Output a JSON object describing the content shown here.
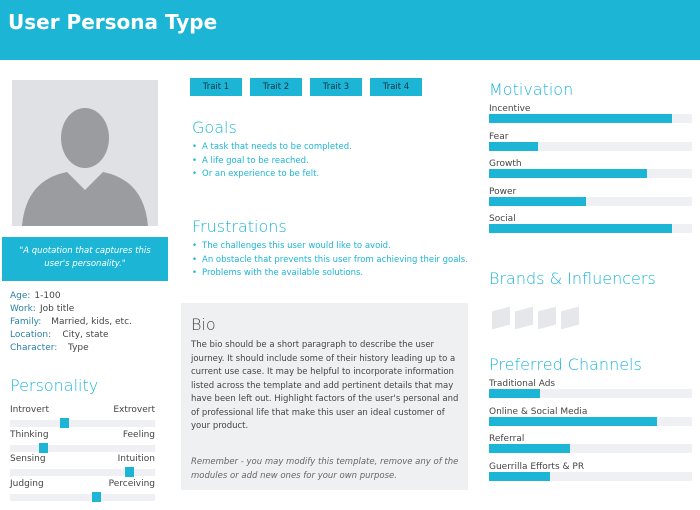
{
  "header": {
    "title": "User Persona Type"
  },
  "profile": {
    "quote": "\"A quotation that captures this user's personality.\"",
    "details": [
      {
        "label": "Age:",
        "value": "1-100"
      },
      {
        "label": "Work:",
        "value": "Job title"
      },
      {
        "label": "Family:",
        "value": "Married, kids, etc."
      },
      {
        "label": "Location:",
        "value": "City, state"
      },
      {
        "label": "Character:",
        "value": "Type"
      }
    ]
  },
  "personality": {
    "title": "Personality",
    "scales": [
      {
        "left": "Introvert",
        "right": "Extrovert",
        "value": 37
      },
      {
        "left": "Thinking",
        "right": "Feeling",
        "value": 23
      },
      {
        "left": "Sensing",
        "right": "Intuition",
        "value": 82
      },
      {
        "left": "Judging",
        "right": "Perceiving",
        "value": 59
      }
    ]
  },
  "traits": [
    "Trait 1",
    "Trait 2",
    "Trait 3",
    "Trait 4"
  ],
  "goals": {
    "title": "Goals",
    "items": [
      "A task that needs to be completed.",
      "A life goal to be reached.",
      "Or an experience to be felt."
    ]
  },
  "frustrations": {
    "title": "Frustrations",
    "items": [
      "The challenges this user would like to avoid.",
      "An obstacle that prevents this user from achieving their goals.",
      "Problems with the available solutions."
    ]
  },
  "bio": {
    "title": "Bio",
    "text": "The bio should be a short paragraph to describe the user journey. It should include some of their history leading up to a current use case. It may be helpful to incorporate information listed across the template and add pertinent details that may have been left out. Highlight factors of the user's personal and of professional life that make this user an ideal customer of your product.",
    "note": "Remember - you may modify this template, remove any of the modules or add new ones for your own purpose."
  },
  "motivation": {
    "title": "Motivation",
    "items": [
      {
        "name": "Incentive",
        "value": 90
      },
      {
        "name": "Fear",
        "value": 24
      },
      {
        "name": "Growth",
        "value": 78
      },
      {
        "name": "Power",
        "value": 48
      },
      {
        "name": "Social",
        "value": 90
      }
    ]
  },
  "brands": {
    "title": "Brands & Influencers"
  },
  "channels": {
    "title": "Preferred Channels",
    "items": [
      {
        "name": "Traditional Ads",
        "value": 25
      },
      {
        "name": "Online & Social Media",
        "value": 83
      },
      {
        "name": "Referral",
        "value": 40
      },
      {
        "name": "Guerrilla Efforts & PR",
        "value": 30
      }
    ]
  }
}
